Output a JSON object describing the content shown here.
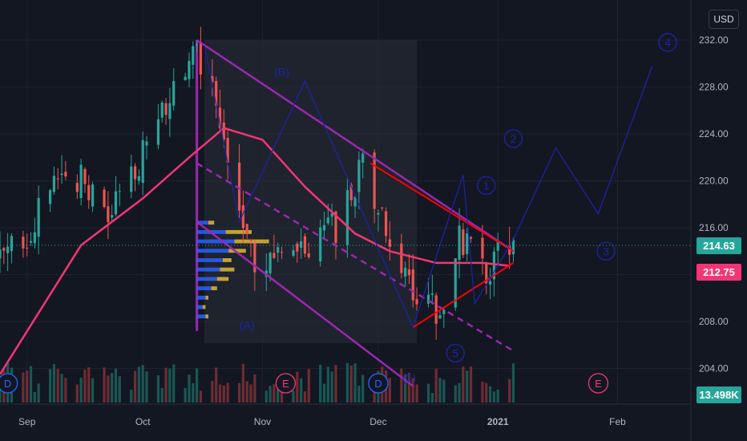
{
  "header": {
    "currency": "USD"
  },
  "price_axis": {
    "labels": [
      "232.00",
      "228.00",
      "224.00",
      "220.00",
      "216.00",
      "208.00",
      "204.00"
    ],
    "values": [
      232,
      228,
      224,
      220,
      216,
      208,
      204
    ]
  },
  "time_axis": {
    "labels": [
      "Sep",
      "Oct",
      "Nov",
      "Dec",
      "2021",
      "Feb"
    ],
    "dates": [
      "2020-09-01",
      "2020-10-01",
      "2020-11-01",
      "2020-12-01",
      "2021-01-01",
      "2021-02-01"
    ]
  },
  "tags": {
    "last_price": "214.63",
    "ma_value": "212.75",
    "volume": "13.498K"
  },
  "colors": {
    "up": "#26a69a",
    "down": "#ef5350",
    "ma": "#f23674",
    "channel": "#9c27b0",
    "triangle": "#ff0000",
    "wave": "#1e22aa",
    "volume_profile_up": "#2962ff",
    "volume_profile_down": "#e0b833"
  },
  "wave_labels": [
    "(A)",
    "(B)",
    "1",
    "2",
    "3",
    "4",
    "5",
    "(1)"
  ],
  "event_markers": [
    "D",
    "E",
    "D",
    "E"
  ],
  "chart_data": {
    "type": "candlestick",
    "title": "",
    "y_range": [
      202,
      234
    ],
    "x_range": [
      "2020-08-25",
      "2021-02-20"
    ],
    "log_scale": false,
    "grid": true,
    "moving_average": {
      "name": "",
      "x": [
        "2020-08-25",
        "2020-09-15",
        "2020-10-01",
        "2020-10-13",
        "2020-10-22",
        "2020-11-01",
        "2020-11-12",
        "2020-11-25",
        "2020-12-04",
        "2020-12-16",
        "2020-12-28",
        "2021-01-04"
      ],
      "y": [
        203.5,
        214.5,
        218.5,
        222.0,
        224.5,
        223.5,
        219.5,
        215.5,
        214.0,
        213.0,
        213.0,
        212.75
      ]
    },
    "price_path": {
      "x": [
        "2020-08-25",
        "2020-09-02",
        "2020-09-12",
        "2020-09-22",
        "2020-10-02",
        "2020-10-12",
        "2020-10-15",
        "2020-10-22",
        "2020-10-30",
        "2020-11-06",
        "2020-11-14",
        "2020-11-20",
        "2020-11-27",
        "2020-12-03",
        "2020-12-10",
        "2020-12-17",
        "2020-12-22",
        "2020-12-28",
        "2021-01-04"
      ],
      "y": [
        213.0,
        216.0,
        221.5,
        216.5,
        223.0,
        229.5,
        231.0,
        224.0,
        213.5,
        213.0,
        214.5,
        216.0,
        221.0,
        215.5,
        210.5,
        209.0,
        215.5,
        212.0,
        214.63
      ]
    },
    "descending_channel": {
      "upper": {
        "x": [
          "2020-10-15",
          "2021-01-05"
        ],
        "y": [
          232.0,
          214.0
        ]
      },
      "middle": {
        "x": [
          "2020-10-15",
          "2021-01-05"
        ],
        "y": [
          221.5,
          205.5
        ]
      },
      "lower": {
        "x": [
          "2020-10-15",
          "2020-12-10"
        ],
        "y": [
          216.5,
          202.5
        ]
      }
    },
    "triangle": {
      "upper": {
        "x": [
          "2020-11-29",
          "2021-01-05"
        ],
        "y": [
          221.5,
          214.0
        ]
      },
      "lower": {
        "x": [
          "2020-12-10",
          "2021-01-05"
        ],
        "y": [
          207.5,
          213.0
        ]
      }
    },
    "wave_projection": {
      "x": [
        "2020-10-17",
        "2020-10-26",
        "2020-11-12",
        "2020-12-10",
        "2020-12-23",
        "2020-12-26",
        "2021-01-05",
        "2021-01-16",
        "2021-01-27",
        "2021-02-10"
      ],
      "y": [
        231.5,
        216.5,
        228.5,
        207.5,
        220.5,
        209.5,
        215.0,
        222.8,
        217.2,
        229.8
      ]
    },
    "volume_profile": {
      "bins": [
        208.2,
        209.0,
        209.8,
        210.6,
        211.4,
        212.2,
        213.0,
        213.8,
        214.6,
        215.4,
        216.2
      ],
      "up": [
        3,
        2,
        3,
        5,
        7,
        8,
        9,
        11,
        13,
        10,
        4
      ],
      "down": [
        1,
        1,
        1,
        2,
        4,
        5,
        3,
        6,
        12,
        9,
        2
      ]
    },
    "volume": {
      "last": "13.498K"
    }
  }
}
